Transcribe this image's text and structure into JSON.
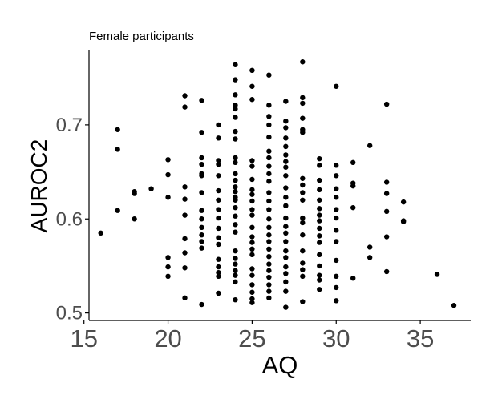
{
  "chart_data": {
    "type": "scatter",
    "title": "Female participants",
    "xlabel": "AQ",
    "ylabel": "AUROC2",
    "xlim": [
      15.3,
      38.0
    ],
    "ylim": [
      0.492,
      0.78
    ],
    "xticks": [
      15,
      20,
      25,
      30,
      35
    ],
    "yticks": [
      0.5,
      0.6,
      0.7
    ],
    "ytick_labels": [
      "0.5",
      "0.6",
      "0.7"
    ],
    "grid": false,
    "point_color": "#000000",
    "axis_color": "#000000",
    "tick_label_color": "#4d4d4d",
    "points": [
      {
        "x": 16,
        "y": 0.585
      },
      {
        "x": 17,
        "y": 0.695
      },
      {
        "x": 17,
        "y": 0.674
      },
      {
        "x": 17,
        "y": 0.609
      },
      {
        "x": 18,
        "y": 0.629
      },
      {
        "x": 18,
        "y": 0.627
      },
      {
        "x": 18,
        "y": 0.6
      },
      {
        "x": 19,
        "y": 0.632
      },
      {
        "x": 20,
        "y": 0.663
      },
      {
        "x": 20,
        "y": 0.647
      },
      {
        "x": 20,
        "y": 0.623
      },
      {
        "x": 20,
        "y": 0.559
      },
      {
        "x": 20,
        "y": 0.549
      },
      {
        "x": 20,
        "y": 0.539
      },
      {
        "x": 21,
        "y": 0.731
      },
      {
        "x": 21,
        "y": 0.719
      },
      {
        "x": 21,
        "y": 0.634
      },
      {
        "x": 21,
        "y": 0.621
      },
      {
        "x": 21,
        "y": 0.604
      },
      {
        "x": 21,
        "y": 0.579
      },
      {
        "x": 21,
        "y": 0.564
      },
      {
        "x": 21,
        "y": 0.548
      },
      {
        "x": 21,
        "y": 0.516
      },
      {
        "x": 22,
        "y": 0.726
      },
      {
        "x": 22,
        "y": 0.692
      },
      {
        "x": 22,
        "y": 0.665
      },
      {
        "x": 22,
        "y": 0.658
      },
      {
        "x": 22,
        "y": 0.648
      },
      {
        "x": 22,
        "y": 0.646
      },
      {
        "x": 22,
        "y": 0.628
      },
      {
        "x": 22,
        "y": 0.609
      },
      {
        "x": 22,
        "y": 0.6
      },
      {
        "x": 22,
        "y": 0.591
      },
      {
        "x": 22,
        "y": 0.583
      },
      {
        "x": 22,
        "y": 0.576
      },
      {
        "x": 22,
        "y": 0.569
      },
      {
        "x": 22,
        "y": 0.509
      },
      {
        "x": 23,
        "y": 0.7
      },
      {
        "x": 23,
        "y": 0.686
      },
      {
        "x": 23,
        "y": 0.662
      },
      {
        "x": 23,
        "y": 0.658
      },
      {
        "x": 23,
        "y": 0.646
      },
      {
        "x": 23,
        "y": 0.63
      },
      {
        "x": 23,
        "y": 0.62
      },
      {
        "x": 23,
        "y": 0.61
      },
      {
        "x": 23,
        "y": 0.601
      },
      {
        "x": 23,
        "y": 0.59
      },
      {
        "x": 23,
        "y": 0.58
      },
      {
        "x": 23,
        "y": 0.573
      },
      {
        "x": 23,
        "y": 0.557
      },
      {
        "x": 23,
        "y": 0.549
      },
      {
        "x": 23,
        "y": 0.543
      },
      {
        "x": 23,
        "y": 0.539
      },
      {
        "x": 23,
        "y": 0.521
      },
      {
        "x": 24,
        "y": 0.764
      },
      {
        "x": 24,
        "y": 0.748
      },
      {
        "x": 24,
        "y": 0.732
      },
      {
        "x": 24,
        "y": 0.721
      },
      {
        "x": 24,
        "y": 0.717
      },
      {
        "x": 24,
        "y": 0.708
      },
      {
        "x": 24,
        "y": 0.693
      },
      {
        "x": 24,
        "y": 0.685
      },
      {
        "x": 24,
        "y": 0.665
      },
      {
        "x": 24,
        "y": 0.66
      },
      {
        "x": 24,
        "y": 0.648
      },
      {
        "x": 24,
        "y": 0.641
      },
      {
        "x": 24,
        "y": 0.634
      },
      {
        "x": 24,
        "y": 0.629
      },
      {
        "x": 24,
        "y": 0.623
      },
      {
        "x": 24,
        "y": 0.62
      },
      {
        "x": 24,
        "y": 0.612
      },
      {
        "x": 24,
        "y": 0.603
      },
      {
        "x": 24,
        "y": 0.594
      },
      {
        "x": 24,
        "y": 0.586
      },
      {
        "x": 24,
        "y": 0.566
      },
      {
        "x": 24,
        "y": 0.558
      },
      {
        "x": 24,
        "y": 0.552
      },
      {
        "x": 24,
        "y": 0.545
      },
      {
        "x": 24,
        "y": 0.54
      },
      {
        "x": 24,
        "y": 0.533
      },
      {
        "x": 24,
        "y": 0.514
      },
      {
        "x": 25,
        "y": 0.758
      },
      {
        "x": 25,
        "y": 0.741
      },
      {
        "x": 25,
        "y": 0.727
      },
      {
        "x": 25,
        "y": 0.662
      },
      {
        "x": 25,
        "y": 0.656
      },
      {
        "x": 25,
        "y": 0.642
      },
      {
        "x": 25,
        "y": 0.631
      },
      {
        "x": 25,
        "y": 0.626
      },
      {
        "x": 25,
        "y": 0.619
      },
      {
        "x": 25,
        "y": 0.61
      },
      {
        "x": 25,
        "y": 0.604
      },
      {
        "x": 25,
        "y": 0.591
      },
      {
        "x": 25,
        "y": 0.581
      },
      {
        "x": 25,
        "y": 0.575
      },
      {
        "x": 25,
        "y": 0.568
      },
      {
        "x": 25,
        "y": 0.562
      },
      {
        "x": 25,
        "y": 0.547
      },
      {
        "x": 25,
        "y": 0.54
      },
      {
        "x": 25,
        "y": 0.53
      },
      {
        "x": 25,
        "y": 0.522
      },
      {
        "x": 25,
        "y": 0.515
      },
      {
        "x": 25,
        "y": 0.511
      },
      {
        "x": 26,
        "y": 0.753
      },
      {
        "x": 26,
        "y": 0.721
      },
      {
        "x": 26,
        "y": 0.709
      },
      {
        "x": 26,
        "y": 0.7
      },
      {
        "x": 26,
        "y": 0.687
      },
      {
        "x": 26,
        "y": 0.672
      },
      {
        "x": 26,
        "y": 0.665
      },
      {
        "x": 26,
        "y": 0.656
      },
      {
        "x": 26,
        "y": 0.648
      },
      {
        "x": 26,
        "y": 0.64
      },
      {
        "x": 26,
        "y": 0.628
      },
      {
        "x": 26,
        "y": 0.619
      },
      {
        "x": 26,
        "y": 0.61
      },
      {
        "x": 26,
        "y": 0.6
      },
      {
        "x": 26,
        "y": 0.591
      },
      {
        "x": 26,
        "y": 0.583
      },
      {
        "x": 26,
        "y": 0.576
      },
      {
        "x": 26,
        "y": 0.568
      },
      {
        "x": 26,
        "y": 0.56
      },
      {
        "x": 26,
        "y": 0.552
      },
      {
        "x": 26,
        "y": 0.545
      },
      {
        "x": 26,
        "y": 0.538
      },
      {
        "x": 26,
        "y": 0.53
      },
      {
        "x": 26,
        "y": 0.523
      },
      {
        "x": 26,
        "y": 0.516
      },
      {
        "x": 27,
        "y": 0.725
      },
      {
        "x": 27,
        "y": 0.704
      },
      {
        "x": 27,
        "y": 0.697
      },
      {
        "x": 27,
        "y": 0.686
      },
      {
        "x": 27,
        "y": 0.677
      },
      {
        "x": 27,
        "y": 0.668
      },
      {
        "x": 27,
        "y": 0.661
      },
      {
        "x": 27,
        "y": 0.655
      },
      {
        "x": 27,
        "y": 0.646
      },
      {
        "x": 27,
        "y": 0.633
      },
      {
        "x": 27,
        "y": 0.623
      },
      {
        "x": 27,
        "y": 0.614
      },
      {
        "x": 27,
        "y": 0.601
      },
      {
        "x": 27,
        "y": 0.592
      },
      {
        "x": 27,
        "y": 0.585
      },
      {
        "x": 27,
        "y": 0.576
      },
      {
        "x": 27,
        "y": 0.566
      },
      {
        "x": 27,
        "y": 0.559
      },
      {
        "x": 27,
        "y": 0.549
      },
      {
        "x": 27,
        "y": 0.542
      },
      {
        "x": 27,
        "y": 0.533
      },
      {
        "x": 27,
        "y": 0.523
      },
      {
        "x": 27,
        "y": 0.506
      },
      {
        "x": 28,
        "y": 0.767
      },
      {
        "x": 28,
        "y": 0.729
      },
      {
        "x": 28,
        "y": 0.723
      },
      {
        "x": 28,
        "y": 0.707
      },
      {
        "x": 28,
        "y": 0.695
      },
      {
        "x": 28,
        "y": 0.692
      },
      {
        "x": 28,
        "y": 0.643
      },
      {
        "x": 28,
        "y": 0.636
      },
      {
        "x": 28,
        "y": 0.628
      },
      {
        "x": 28,
        "y": 0.62
      },
      {
        "x": 28,
        "y": 0.601
      },
      {
        "x": 28,
        "y": 0.596
      },
      {
        "x": 28,
        "y": 0.583
      },
      {
        "x": 28,
        "y": 0.566
      },
      {
        "x": 28,
        "y": 0.553
      },
      {
        "x": 28,
        "y": 0.546
      },
      {
        "x": 28,
        "y": 0.539
      },
      {
        "x": 28,
        "y": 0.512
      },
      {
        "x": 29,
        "y": 0.664
      },
      {
        "x": 29,
        "y": 0.657
      },
      {
        "x": 29,
        "y": 0.641
      },
      {
        "x": 29,
        "y": 0.631
      },
      {
        "x": 29,
        "y": 0.62
      },
      {
        "x": 29,
        "y": 0.611
      },
      {
        "x": 29,
        "y": 0.604
      },
      {
        "x": 29,
        "y": 0.598
      },
      {
        "x": 29,
        "y": 0.59
      },
      {
        "x": 29,
        "y": 0.582
      },
      {
        "x": 29,
        "y": 0.575
      },
      {
        "x": 29,
        "y": 0.562
      },
      {
        "x": 29,
        "y": 0.55
      },
      {
        "x": 29,
        "y": 0.54
      },
      {
        "x": 29,
        "y": 0.535
      },
      {
        "x": 29,
        "y": 0.525
      },
      {
        "x": 30,
        "y": 0.741
      },
      {
        "x": 30,
        "y": 0.657
      },
      {
        "x": 30,
        "y": 0.646
      },
      {
        "x": 30,
        "y": 0.632
      },
      {
        "x": 30,
        "y": 0.623
      },
      {
        "x": 30,
        "y": 0.61
      },
      {
        "x": 30,
        "y": 0.601
      },
      {
        "x": 30,
        "y": 0.588
      },
      {
        "x": 30,
        "y": 0.576
      },
      {
        "x": 30,
        "y": 0.556
      },
      {
        "x": 30,
        "y": 0.539
      },
      {
        "x": 30,
        "y": 0.527
      },
      {
        "x": 30,
        "y": 0.513
      },
      {
        "x": 31,
        "y": 0.66
      },
      {
        "x": 31,
        "y": 0.638
      },
      {
        "x": 31,
        "y": 0.635
      },
      {
        "x": 31,
        "y": 0.612
      },
      {
        "x": 31,
        "y": 0.537
      },
      {
        "x": 32,
        "y": 0.678
      },
      {
        "x": 32,
        "y": 0.57
      },
      {
        "x": 32,
        "y": 0.559
      },
      {
        "x": 33,
        "y": 0.722
      },
      {
        "x": 33,
        "y": 0.639
      },
      {
        "x": 33,
        "y": 0.627
      },
      {
        "x": 33,
        "y": 0.608
      },
      {
        "x": 33,
        "y": 0.581
      },
      {
        "x": 33,
        "y": 0.544
      },
      {
        "x": 34,
        "y": 0.618
      },
      {
        "x": 34,
        "y": 0.598
      },
      {
        "x": 34,
        "y": 0.597
      },
      {
        "x": 36,
        "y": 0.541
      },
      {
        "x": 37,
        "y": 0.508
      }
    ]
  }
}
